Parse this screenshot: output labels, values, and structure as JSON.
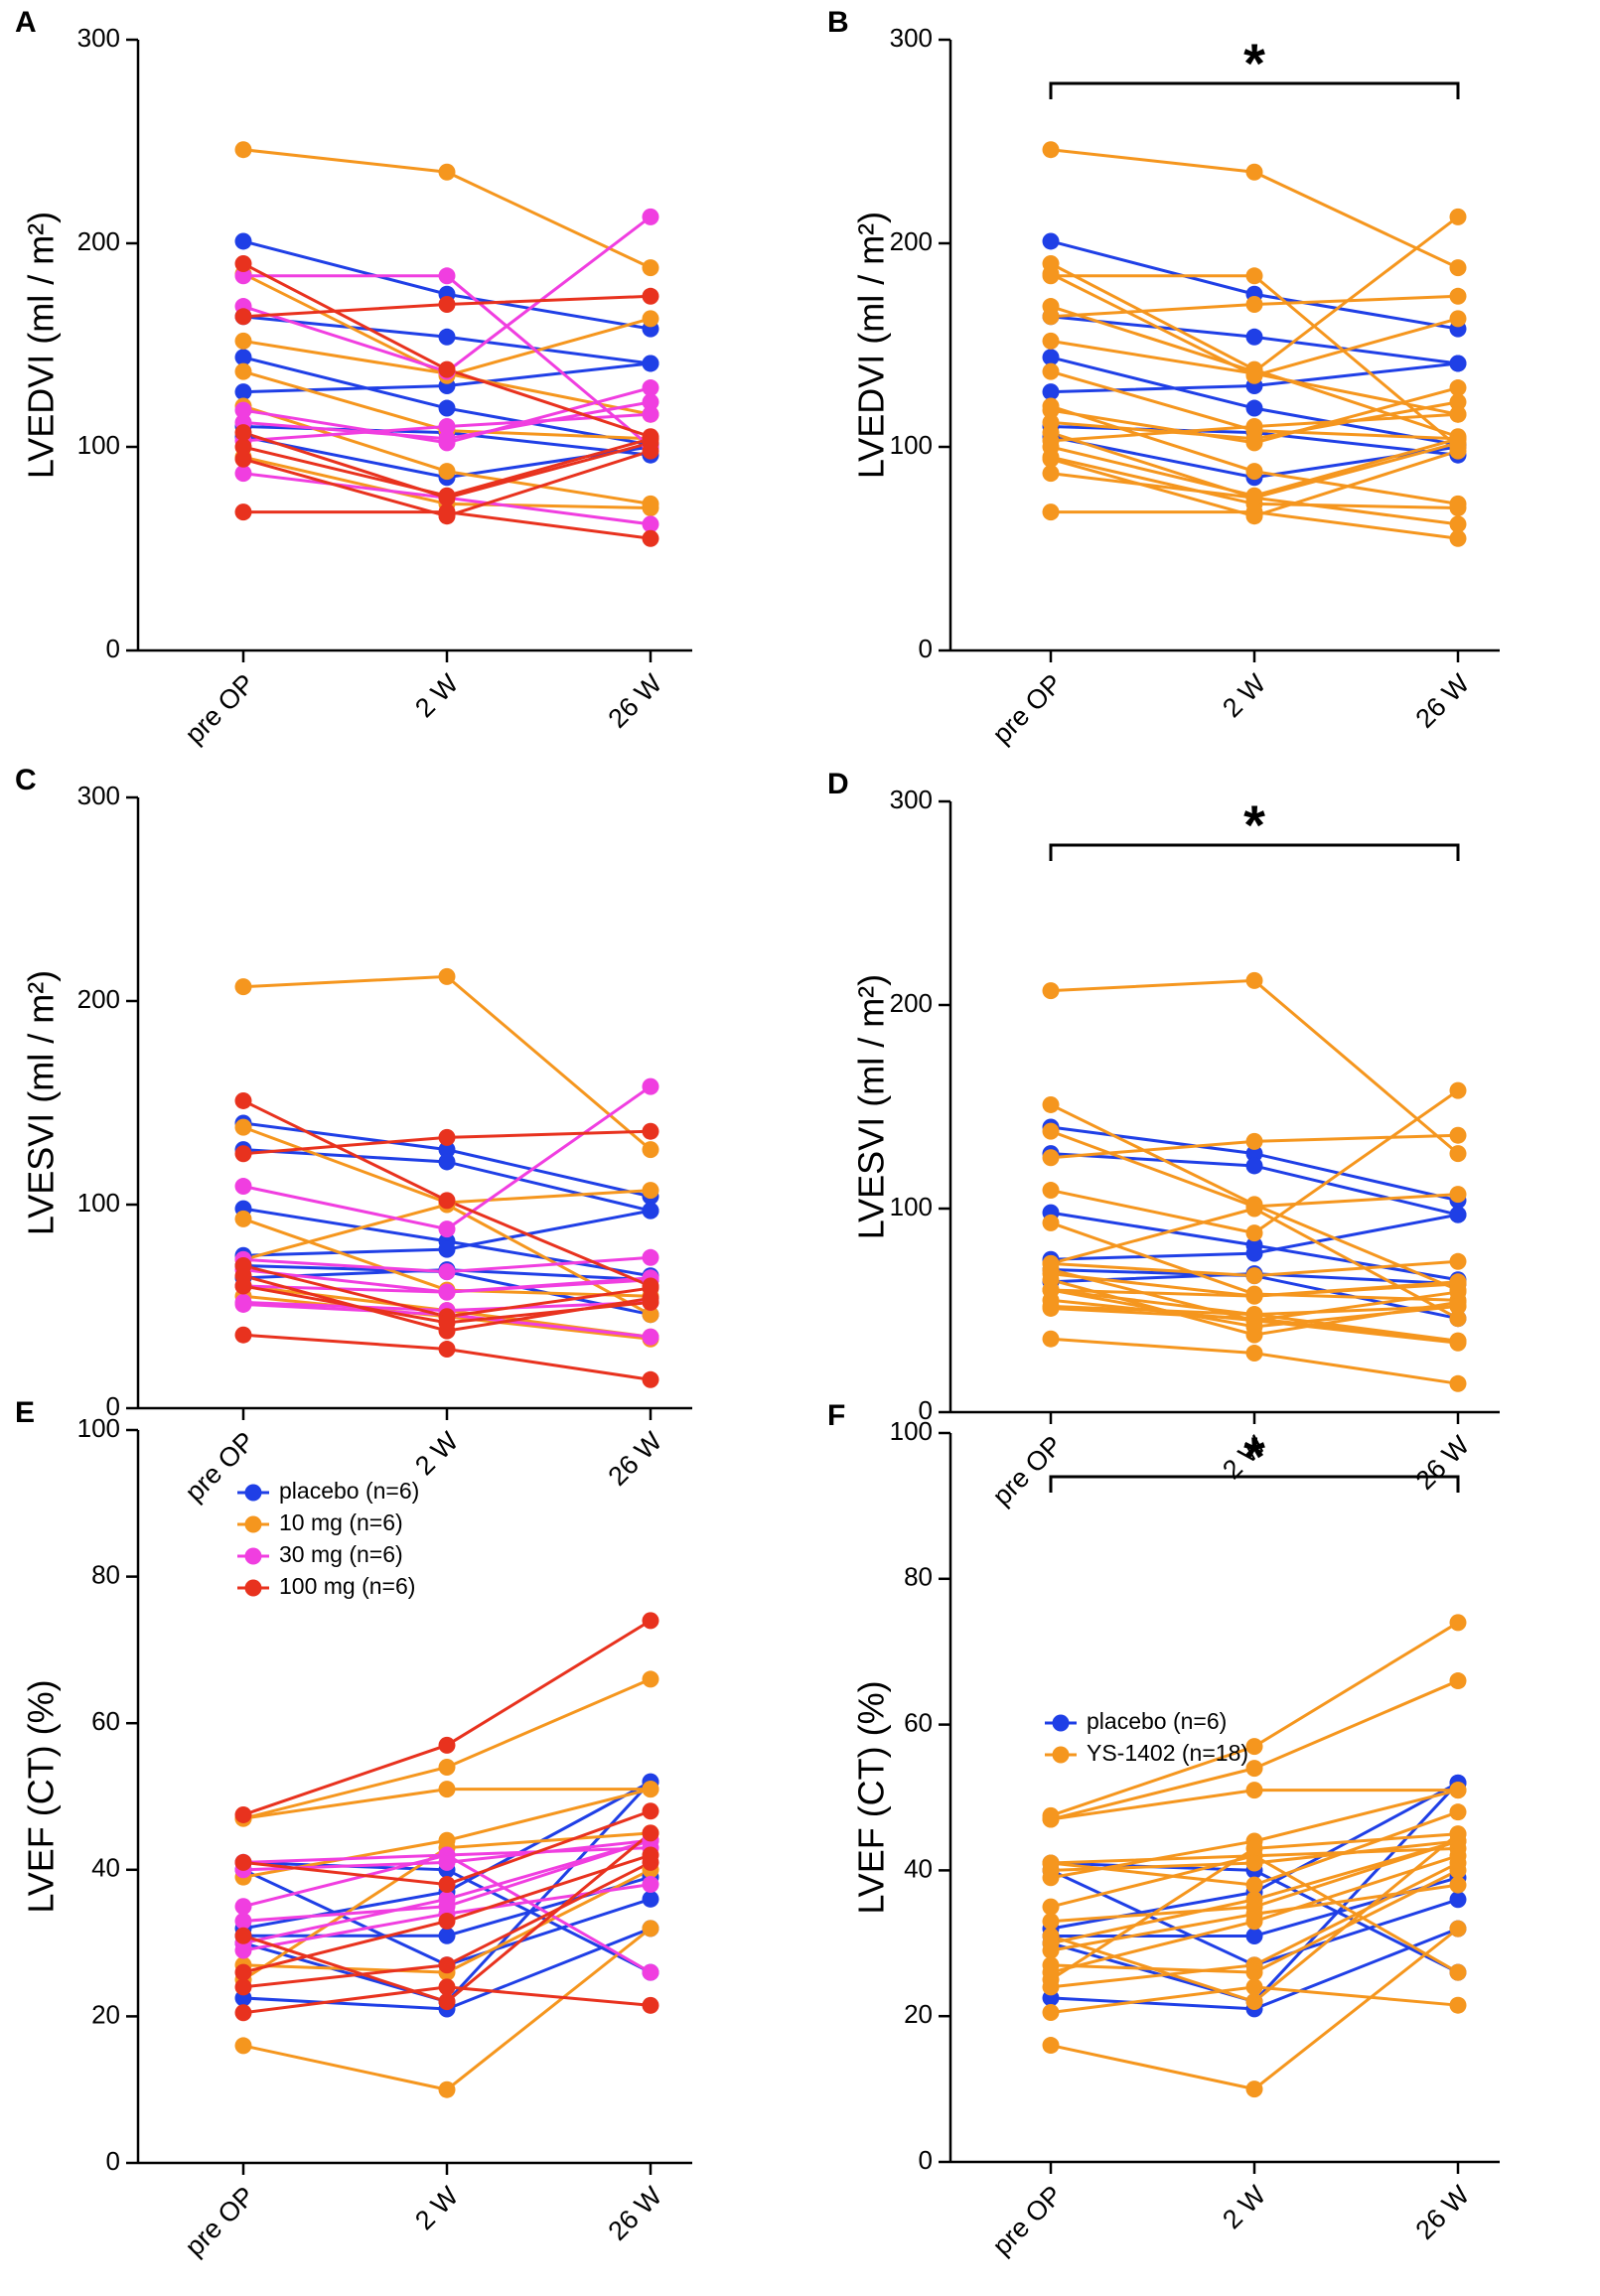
{
  "chart_data": [
    {
      "type": "line",
      "panel": "A",
      "ylabel": "LVEDVI (ml / m²)",
      "categories": [
        "pre OP",
        "2 W",
        "26 W"
      ],
      "ylim": [
        0,
        300
      ],
      "yticks": [
        0,
        100,
        200,
        300
      ],
      "series": [
        {
          "color": "#1f3fe6",
          "values": [
            [
              201,
              175,
              158
            ],
            [
              164,
              154,
              141
            ],
            [
              144,
              119,
              101
            ],
            [
              127,
              130,
              141
            ],
            [
              110,
              107,
              96
            ],
            [
              105,
              85,
              100
            ]
          ]
        },
        {
          "color": "#f5961e",
          "values": [
            [
              246,
              235,
              188
            ],
            [
              185,
              135,
              163
            ],
            [
              152,
              136,
              116
            ],
            [
              137,
              108,
              104
            ],
            [
              120,
              88,
              72
            ],
            [
              95,
              72,
              70
            ]
          ]
        },
        {
          "color": "#f03ee0",
          "values": [
            [
              184,
              184,
              100
            ],
            [
              169,
              137,
              213
            ],
            [
              118,
              102,
              129
            ],
            [
              112,
              104,
              122
            ],
            [
              87,
              75,
              62
            ],
            [
              103,
              110,
              116
            ]
          ]
        },
        {
          "color": "#e8321e",
          "values": [
            [
              190,
              138,
              105
            ],
            [
              164,
              170,
              174
            ],
            [
              100,
              76,
              104
            ],
            [
              94,
              66,
              98
            ],
            [
              68,
              68,
              55
            ],
            [
              107,
              75,
              102
            ]
          ]
        }
      ]
    },
    {
      "type": "line",
      "panel": "B",
      "ylabel": "LVEDVI (ml / m²)",
      "categories": [
        "pre OP",
        "2 W",
        "26 W"
      ],
      "ylim": [
        0,
        300
      ],
      "yticks": [
        0,
        100,
        200,
        300
      ],
      "significance": "*",
      "series": [
        {
          "color": "#1f3fe6",
          "values": [
            [
              201,
              175,
              158
            ],
            [
              164,
              154,
              141
            ],
            [
              144,
              119,
              101
            ],
            [
              127,
              130,
              141
            ],
            [
              110,
              107,
              96
            ],
            [
              105,
              85,
              100
            ]
          ]
        },
        {
          "color": "#f5961e",
          "values": [
            [
              246,
              235,
              188
            ],
            [
              185,
              135,
              163
            ],
            [
              152,
              136,
              116
            ],
            [
              137,
              108,
              104
            ],
            [
              120,
              88,
              72
            ],
            [
              95,
              72,
              70
            ],
            [
              184,
              184,
              100
            ],
            [
              169,
              137,
              213
            ],
            [
              118,
              102,
              129
            ],
            [
              112,
              104,
              122
            ],
            [
              87,
              75,
              62
            ],
            [
              103,
              110,
              116
            ],
            [
              190,
              138,
              105
            ],
            [
              164,
              170,
              174
            ],
            [
              100,
              76,
              104
            ],
            [
              94,
              66,
              98
            ],
            [
              68,
              68,
              55
            ],
            [
              107,
              75,
              102
            ]
          ]
        }
      ]
    },
    {
      "type": "line",
      "panel": "C",
      "ylabel": "LVESVI (ml / m²)",
      "categories": [
        "pre OP",
        "2 W",
        "26 W"
      ],
      "ylim": [
        0,
        300
      ],
      "yticks": [
        0,
        100,
        200,
        300
      ],
      "series": [
        {
          "color": "#1f3fe6",
          "values": [
            [
              140,
              127,
              104
            ],
            [
              127,
              121,
              97
            ],
            [
              98,
              82,
              65
            ],
            [
              75,
              78,
              97
            ],
            [
              70,
              67,
              46
            ],
            [
              64,
              68,
              63
            ]
          ]
        },
        {
          "color": "#f5961e",
          "values": [
            [
              207,
              212,
              127
            ],
            [
              138,
              101,
              107
            ],
            [
              93,
              58,
              55
            ],
            [
              60,
              48,
              35
            ],
            [
              55,
              45,
              34
            ],
            [
              73,
              100,
              46
            ]
          ]
        },
        {
          "color": "#f03ee0",
          "values": [
            [
              109,
              88,
              158
            ],
            [
              73,
              67,
              74
            ],
            [
              60,
              57,
              63
            ],
            [
              52,
              48,
              52
            ],
            [
              51,
              46,
              35
            ],
            [
              68,
              57,
              64
            ]
          ]
        },
        {
          "color": "#e8321e",
          "values": [
            [
              151,
              102,
              60
            ],
            [
              125,
              133,
              136
            ],
            [
              36,
              29,
              14
            ],
            [
              65,
              38,
              54
            ],
            [
              70,
              45,
              59
            ],
            [
              60,
              42,
              52
            ]
          ]
        }
      ]
    },
    {
      "type": "line",
      "panel": "D",
      "ylabel": "LVESVI (ml / m²)",
      "categories": [
        "pre OP",
        "2 W",
        "26 W"
      ],
      "ylim": [
        0,
        300
      ],
      "yticks": [
        0,
        100,
        200,
        300
      ],
      "significance": "*",
      "series": [
        {
          "color": "#1f3fe6",
          "values": [
            [
              140,
              127,
              104
            ],
            [
              127,
              121,
              97
            ],
            [
              98,
              82,
              65
            ],
            [
              75,
              78,
              97
            ],
            [
              70,
              67,
              46
            ],
            [
              64,
              68,
              63
            ]
          ]
        },
        {
          "color": "#f5961e",
          "values": [
            [
              207,
              212,
              127
            ],
            [
              138,
              101,
              107
            ],
            [
              93,
              58,
              55
            ],
            [
              60,
              48,
              35
            ],
            [
              55,
              45,
              34
            ],
            [
              73,
              100,
              46
            ],
            [
              109,
              88,
              158
            ],
            [
              73,
              67,
              74
            ],
            [
              60,
              57,
              63
            ],
            [
              52,
              48,
              52
            ],
            [
              51,
              46,
              35
            ],
            [
              68,
              57,
              64
            ],
            [
              151,
              102,
              60
            ],
            [
              125,
              133,
              136
            ],
            [
              36,
              29,
              14
            ],
            [
              65,
              38,
              54
            ],
            [
              70,
              45,
              59
            ],
            [
              60,
              42,
              52
            ]
          ]
        }
      ]
    },
    {
      "type": "line",
      "panel": "E",
      "ylabel": "LVEF (CT) (%)",
      "categories": [
        "pre OP",
        "2 W",
        "26 W"
      ],
      "ylim": [
        0,
        100
      ],
      "yticks": [
        0,
        20,
        40,
        60,
        80,
        100
      ],
      "legend": "upper left",
      "series": [
        {
          "name": "placebo (n=6)",
          "color": "#1f3fe6",
          "values": [
            [
              41,
              40,
              26
            ],
            [
              32,
              37,
              52
            ],
            [
              31,
              31,
              39
            ],
            [
              30,
              22,
              52
            ],
            [
              22.5,
              21,
              32
            ],
            [
              40,
              27,
              36
            ]
          ]
        },
        {
          "name": "10 mg (n=6)",
          "color": "#f5961e",
          "values": [
            [
              47,
              54,
              66
            ],
            [
              16,
              10,
              32
            ],
            [
              39,
              44,
              51
            ],
            [
              27,
              26,
              40
            ],
            [
              25,
              43,
              45
            ],
            [
              47,
              51,
              51
            ]
          ]
        },
        {
          "name": "30 mg (n=6)",
          "color": "#f03ee0",
          "values": [
            [
              35,
              42,
              43
            ],
            [
              33,
              35,
              44
            ],
            [
              41,
              42,
              26
            ],
            [
              30,
              36,
              44
            ],
            [
              29,
              34,
              38
            ],
            [
              40,
              41,
              44
            ]
          ]
        },
        {
          "name": "100 mg (n=6)",
          "color": "#e8321e",
          "values": [
            [
              47.5,
              57,
              74
            ],
            [
              20.5,
              24,
              21.5
            ],
            [
              41,
              38,
              48
            ],
            [
              24,
              27,
              41
            ],
            [
              31,
              22,
              45
            ],
            [
              26,
              33,
              42
            ]
          ]
        }
      ]
    },
    {
      "type": "line",
      "panel": "F",
      "ylabel": "LVEF (CT) (%)",
      "categories": [
        "pre OP",
        "2 W",
        "26 W"
      ],
      "ylim": [
        0,
        100
      ],
      "yticks": [
        0,
        20,
        40,
        60,
        80,
        100
      ],
      "significance": "*",
      "legend": "center left",
      "series": [
        {
          "name": "placebo (n=6)",
          "color": "#1f3fe6",
          "values": [
            [
              41,
              40,
              26
            ],
            [
              32,
              37,
              52
            ],
            [
              31,
              31,
              39
            ],
            [
              30,
              22,
              52
            ],
            [
              22.5,
              21,
              32
            ],
            [
              40,
              27,
              36
            ]
          ]
        },
        {
          "name": "YS-1402 (n=18)",
          "color": "#f5961e",
          "values": [
            [
              47,
              54,
              66
            ],
            [
              16,
              10,
              32
            ],
            [
              39,
              44,
              51
            ],
            [
              27,
              26,
              40
            ],
            [
              25,
              43,
              45
            ],
            [
              47,
              51,
              51
            ],
            [
              35,
              42,
              43
            ],
            [
              33,
              35,
              44
            ],
            [
              41,
              42,
              26
            ],
            [
              30,
              36,
              44
            ],
            [
              29,
              34,
              38
            ],
            [
              40,
              41,
              44
            ],
            [
              47.5,
              57,
              74
            ],
            [
              20.5,
              24,
              21.5
            ],
            [
              41,
              38,
              48
            ],
            [
              24,
              27,
              41
            ],
            [
              31,
              22,
              45
            ],
            [
              26,
              33,
              42
            ]
          ]
        }
      ]
    }
  ]
}
